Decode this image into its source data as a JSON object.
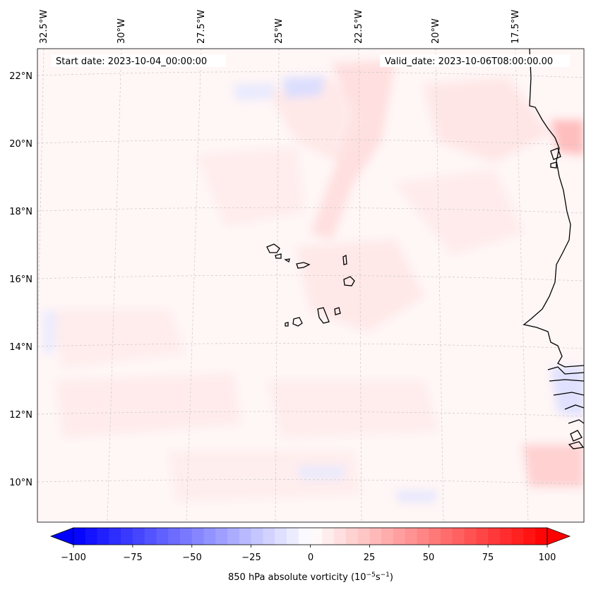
{
  "map": {
    "start_date": "Start date: 2023-10-04_00:00:00",
    "valid_date": "Valid_date: 2023-10-06T08:00:00.00",
    "lon_labels": [
      "32.5°W",
      "30°W",
      "27.5°W",
      "25°W",
      "22.5°W",
      "20°W",
      "17.5°W"
    ],
    "lat_labels": [
      "22°N",
      "20°N",
      "18°N",
      "16°N",
      "14°N",
      "12°N",
      "10°N"
    ],
    "lon_values": [
      -32.5,
      -30,
      -27.5,
      -25,
      -22.5,
      -20,
      -17.5
    ],
    "lat_values": [
      22,
      20,
      18,
      16,
      14,
      12,
      10
    ],
    "extent": {
      "lon_min": -32.5,
      "lon_max": -15.5,
      "lat_min": 8.8,
      "lat_max": 22.8
    }
  },
  "colorbar": {
    "title": "850 hPa absolute vorticity (10",
    "title_sup1": "−5",
    "title_mid": "s",
    "title_sup2": "−1",
    "title_end": ")",
    "ticks": [
      "−100",
      "−75",
      "−50",
      "−25",
      "0",
      "25",
      "50",
      "75",
      "100"
    ],
    "tick_values": [
      -100,
      -75,
      -50,
      -25,
      0,
      25,
      50,
      75,
      100
    ],
    "min": -100,
    "max": 100,
    "step": 5,
    "colors": {
      "negative": "#0000ff",
      "zero": "#ffffff",
      "positive": "#ff0000"
    }
  }
}
